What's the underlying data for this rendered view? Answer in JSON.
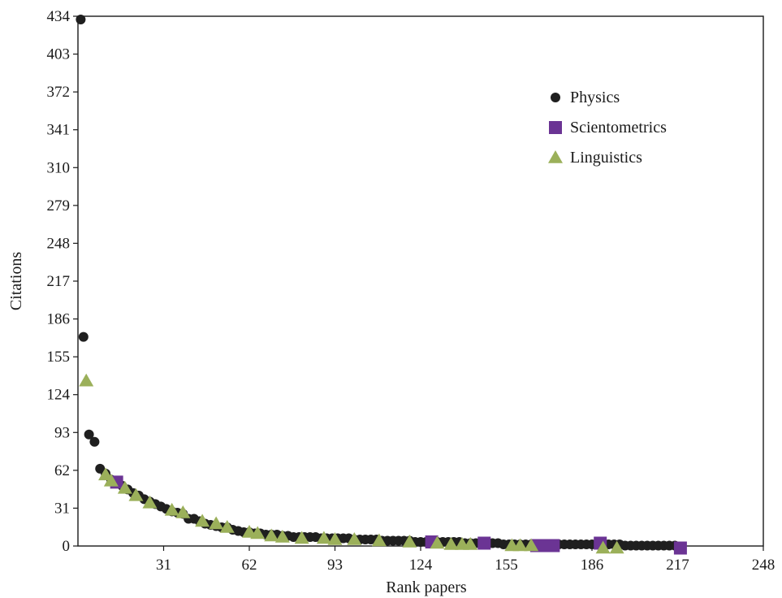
{
  "chart_data": {
    "type": "scatter",
    "title": "",
    "xlabel": "Rank papers",
    "ylabel": "Citations",
    "xlim": [
      0,
      248
    ],
    "ylim": [
      0,
      434
    ],
    "xticks": [
      31,
      62,
      93,
      124,
      155,
      186,
      217,
      248
    ],
    "yticks": [
      0,
      31,
      62,
      93,
      124,
      155,
      186,
      217,
      248,
      279,
      310,
      341,
      372,
      403,
      434
    ],
    "legend_position": "top-right",
    "grid": false,
    "series": [
      {
        "name": "Physics",
        "marker": "circle",
        "color": "#1f1f1f",
        "points": [
          [
            1,
            430
          ],
          [
            2,
            170
          ],
          [
            4,
            90
          ],
          [
            6,
            84
          ],
          [
            8,
            62
          ],
          [
            10,
            58
          ],
          [
            12,
            53
          ],
          [
            14,
            50
          ],
          [
            16,
            48
          ],
          [
            18,
            45
          ],
          [
            20,
            42
          ],
          [
            22,
            40
          ],
          [
            24,
            37
          ],
          [
            26,
            35
          ],
          [
            28,
            33
          ],
          [
            30,
            31
          ],
          [
            32,
            29
          ],
          [
            34,
            27
          ],
          [
            36,
            26
          ],
          [
            38,
            25
          ],
          [
            40,
            21
          ],
          [
            42,
            21
          ],
          [
            44,
            19
          ],
          [
            46,
            17
          ],
          [
            48,
            16
          ],
          [
            50,
            15
          ],
          [
            52,
            14
          ],
          [
            54,
            14
          ],
          [
            56,
            12
          ],
          [
            58,
            11
          ],
          [
            60,
            10
          ],
          [
            62,
            10
          ],
          [
            64,
            9
          ],
          [
            66,
            9
          ],
          [
            68,
            8
          ],
          [
            70,
            8
          ],
          [
            72,
            8
          ],
          [
            74,
            7
          ],
          [
            76,
            7
          ],
          [
            78,
            6
          ],
          [
            80,
            6
          ],
          [
            82,
            6
          ],
          [
            84,
            6
          ],
          [
            86,
            6
          ],
          [
            88,
            5
          ],
          [
            90,
            5
          ],
          [
            92,
            5
          ],
          [
            94,
            5
          ],
          [
            96,
            5
          ],
          [
            98,
            5
          ],
          [
            100,
            4
          ],
          [
            102,
            4
          ],
          [
            104,
            4
          ],
          [
            106,
            4
          ],
          [
            108,
            4
          ],
          [
            110,
            3
          ],
          [
            112,
            3
          ],
          [
            114,
            3
          ],
          [
            116,
            3
          ],
          [
            118,
            3
          ],
          [
            120,
            3
          ],
          [
            122,
            2
          ],
          [
            124,
            2
          ],
          [
            126,
            2
          ],
          [
            128,
            2
          ],
          [
            130,
            2
          ],
          [
            132,
            2
          ],
          [
            134,
            2
          ],
          [
            136,
            2
          ],
          [
            138,
            2
          ],
          [
            140,
            1
          ],
          [
            142,
            1
          ],
          [
            144,
            1
          ],
          [
            146,
            1
          ],
          [
            148,
            1
          ],
          [
            150,
            1
          ],
          [
            152,
            1
          ],
          [
            154,
            0
          ],
          [
            156,
            0
          ],
          [
            158,
            0
          ],
          [
            160,
            0
          ],
          [
            162,
            0
          ],
          [
            164,
            0
          ],
          [
            166,
            0
          ],
          [
            168,
            0
          ],
          [
            170,
            0
          ],
          [
            172,
            0
          ],
          [
            174,
            0
          ],
          [
            176,
            0
          ],
          [
            178,
            0
          ],
          [
            180,
            0
          ],
          [
            182,
            0
          ],
          [
            184,
            0
          ],
          [
            186,
            0
          ],
          [
            188,
            0
          ],
          [
            190,
            0
          ],
          [
            192,
            0
          ],
          [
            194,
            0
          ],
          [
            196,
            0
          ],
          [
            198,
            -1
          ],
          [
            200,
            -1
          ],
          [
            202,
            -1
          ],
          [
            204,
            -1
          ],
          [
            206,
            -1
          ],
          [
            208,
            -1
          ],
          [
            210,
            -1
          ],
          [
            212,
            -1
          ],
          [
            214,
            -1
          ],
          [
            216,
            -1
          ]
        ]
      },
      {
        "name": "Scientometrics",
        "marker": "square",
        "color": "#6b3494",
        "points": [
          [
            14,
            51
          ],
          [
            128,
            2
          ],
          [
            147,
            1
          ],
          [
            166,
            -1
          ],
          [
            169,
            -1
          ],
          [
            172,
            -1
          ],
          [
            189,
            1
          ],
          [
            218,
            -3
          ]
        ]
      },
      {
        "name": "Linguistics",
        "marker": "triangle",
        "color": "#9bb05a",
        "points": [
          [
            3,
            134
          ],
          [
            10,
            57
          ],
          [
            12,
            52
          ],
          [
            17,
            46
          ],
          [
            21,
            40
          ],
          [
            26,
            34
          ],
          [
            34,
            28
          ],
          [
            38,
            26
          ],
          [
            45,
            19
          ],
          [
            50,
            17
          ],
          [
            54,
            14
          ],
          [
            62,
            10
          ],
          [
            65,
            9
          ],
          [
            70,
            7
          ],
          [
            74,
            6
          ],
          [
            81,
            5
          ],
          [
            89,
            5
          ],
          [
            93,
            4
          ],
          [
            100,
            4
          ],
          [
            109,
            3
          ],
          [
            120,
            2
          ],
          [
            130,
            1
          ],
          [
            135,
            0
          ],
          [
            139,
            0
          ],
          [
            142,
            0
          ],
          [
            157,
            -1
          ],
          [
            160,
            -1
          ],
          [
            164,
            -1
          ],
          [
            190,
            -3
          ],
          [
            195,
            -3
          ]
        ]
      }
    ]
  }
}
